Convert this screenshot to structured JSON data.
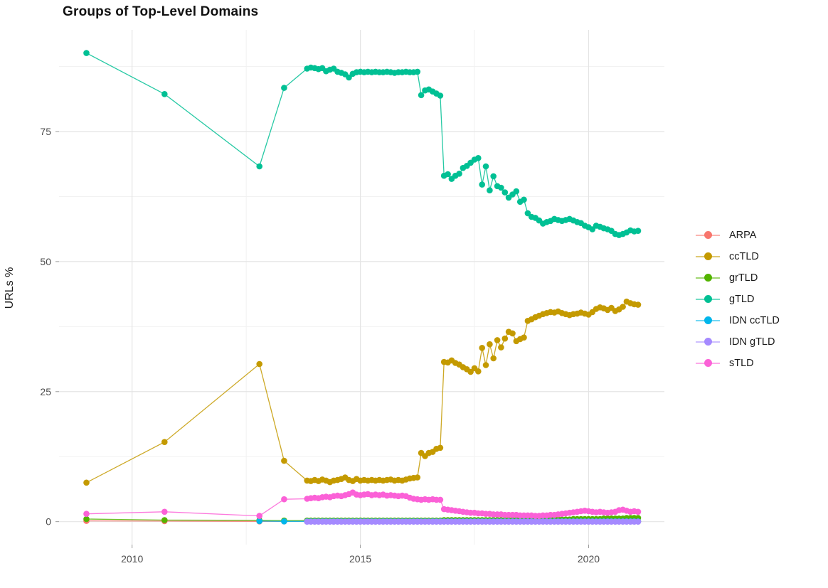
{
  "title": "Groups of Top-Level Domains",
  "chart_data": {
    "type": "line",
    "title": "Groups of Top-Level Domains",
    "xlabel": "",
    "ylabel": "URLs %",
    "x_ticks": [
      2010,
      2015,
      2020
    ],
    "x_minor_gridlines": [
      2012.5,
      2017.5
    ],
    "y_ticks": [
      0,
      25,
      50,
      75
    ],
    "y_minor_gridlines": [
      12.5,
      37.5,
      62.5,
      87.5
    ],
    "xlim": [
      2008.4,
      2021.66
    ],
    "ylim": [
      -4.42,
      94.55
    ],
    "grid": true,
    "legend_position": "right",
    "colors": {
      "major_grid": "#e4e4e4",
      "minor_grid": "#f0f0f0",
      "tick_mark": "#9a9a9a",
      "tick_text": "#4d4d4d",
      "title_text": "#111111"
    },
    "series": [
      {
        "name": "ARPA",
        "color": "#F8766D",
        "early": [
          [
            2009.0,
            0.15
          ],
          [
            2010.71,
            0.1
          ],
          [
            2012.79,
            0.05
          ],
          [
            2013.33,
            0.05
          ]
        ],
        "dense": {
          "x0": 2013.833,
          "dx": 0.08333,
          "fill_value": 0.05,
          "count": 88
        }
      },
      {
        "name": "ccTLD",
        "color": "#C49A00",
        "early": [
          [
            2009.0,
            7.5
          ],
          [
            2010.71,
            15.3
          ],
          [
            2012.79,
            30.3
          ],
          [
            2013.33,
            11.7
          ]
        ],
        "dense": {
          "x0": 2013.833,
          "dx": 0.08333,
          "values": [
            7.9,
            7.8,
            8.0,
            7.8,
            8.1,
            7.9,
            7.6,
            7.9,
            8.0,
            8.2,
            8.5,
            8.0,
            7.8,
            8.2,
            7.9,
            8.0,
            7.9,
            8.0,
            7.9,
            8.0,
            7.9,
            8.0,
            8.1,
            7.9,
            8.0,
            7.9,
            8.1,
            8.3,
            8.4,
            8.5,
            13.2,
            12.6,
            13.2,
            13.4,
            14.0,
            14.2,
            30.7,
            30.6,
            31.0,
            30.5,
            30.2,
            29.7,
            29.3,
            28.8,
            29.5,
            28.9,
            33.4,
            30.1,
            34.1,
            31.4,
            34.9,
            33.5,
            35.2,
            36.5,
            36.2,
            34.7,
            35.1,
            35.4,
            38.6,
            38.9,
            39.3,
            39.6,
            39.9,
            40.1,
            40.3,
            40.2,
            40.4,
            40.1,
            39.9,
            39.7,
            39.9,
            40.0,
            40.2,
            40.0,
            39.8,
            40.3,
            40.9,
            41.2,
            41.0,
            40.7,
            41.1,
            40.5,
            40.8,
            41.3,
            42.3,
            42.0,
            41.8,
            41.7
          ]
        }
      },
      {
        "name": "grTLD",
        "color": "#53B400",
        "early": [
          [
            2009.0,
            0.5
          ],
          [
            2010.71,
            0.3
          ],
          [
            2012.79,
            0.25
          ],
          [
            2013.33,
            0.2
          ]
        ],
        "dense": {
          "x0": 2013.833,
          "dx": 0.08333,
          "values": [
            0.2,
            0.2,
            0.2,
            0.2,
            0.2,
            0.2,
            0.2,
            0.2,
            0.2,
            0.2,
            0.2,
            0.2,
            0.2,
            0.2,
            0.2,
            0.2,
            0.2,
            0.2,
            0.2,
            0.2,
            0.2,
            0.2,
            0.2,
            0.2,
            0.2,
            0.2,
            0.2,
            0.2,
            0.2,
            0.2,
            0.2,
            0.2,
            0.2,
            0.2,
            0.2,
            0.2,
            0.3,
            0.3,
            0.3,
            0.3,
            0.3,
            0.3,
            0.3,
            0.3,
            0.3,
            0.3,
            0.3,
            0.3,
            0.3,
            0.3,
            0.3,
            0.3,
            0.3,
            0.3,
            0.3,
            0.3,
            0.3,
            0.3,
            0.4,
            0.4,
            0.4,
            0.4,
            0.4,
            0.4,
            0.4,
            0.4,
            0.4,
            0.4,
            0.4,
            0.4,
            0.5,
            0.5,
            0.5,
            0.5,
            0.5,
            0.5,
            0.5,
            0.5,
            0.6,
            0.6,
            0.6,
            0.6,
            0.6,
            0.6,
            0.7,
            0.7,
            0.7,
            0.7
          ]
        }
      },
      {
        "name": "gTLD",
        "color": "#00C094",
        "early": [
          [
            2009.0,
            90.1
          ],
          [
            2010.71,
            82.2
          ],
          [
            2012.79,
            68.3
          ],
          [
            2013.33,
            83.4
          ]
        ],
        "dense": {
          "x0": 2013.833,
          "dx": 0.08333,
          "values": [
            87.1,
            87.3,
            87.2,
            87.0,
            87.2,
            86.6,
            86.9,
            87.1,
            86.5,
            86.3,
            86.0,
            85.4,
            86.1,
            86.4,
            86.5,
            86.4,
            86.5,
            86.4,
            86.5,
            86.4,
            86.4,
            86.5,
            86.4,
            86.3,
            86.4,
            86.4,
            86.5,
            86.4,
            86.4,
            86.5,
            82.0,
            82.9,
            83.1,
            82.7,
            82.3,
            81.9,
            66.5,
            66.8,
            65.9,
            66.5,
            66.9,
            68.0,
            68.4,
            69.0,
            69.6,
            69.9,
            64.8,
            68.3,
            63.7,
            66.4,
            64.5,
            64.2,
            63.3,
            62.3,
            62.9,
            63.5,
            61.5,
            61.9,
            59.3,
            58.6,
            58.4,
            57.9,
            57.3,
            57.6,
            57.8,
            58.2,
            58.0,
            57.8,
            58.0,
            58.2,
            57.9,
            57.6,
            57.4,
            56.9,
            56.6,
            56.2,
            56.9,
            56.7,
            56.4,
            56.2,
            55.9,
            55.3,
            55.1,
            55.3,
            55.6,
            56.0,
            55.8,
            55.9
          ]
        }
      },
      {
        "name": "IDN ccTLD",
        "color": "#00B6EB",
        "early": [
          [
            2012.79,
            0.1
          ],
          [
            2013.33,
            0.05
          ]
        ],
        "dense": {
          "x0": 2013.833,
          "dx": 0.08333,
          "fill_value": 0.05,
          "count": 88
        }
      },
      {
        "name": "IDN gTLD",
        "color": "#A58AFF",
        "early": [],
        "dense": {
          "x0": 2013.833,
          "dx": 0.08333,
          "fill_value": 0.0,
          "count": 88
        }
      },
      {
        "name": "sTLD",
        "color": "#FB61D7",
        "early": [
          [
            2009.0,
            1.5
          ],
          [
            2010.71,
            1.9
          ],
          [
            2012.79,
            1.1
          ],
          [
            2013.33,
            4.3
          ]
        ],
        "dense": {
          "x0": 2013.833,
          "dx": 0.08333,
          "values": [
            4.4,
            4.5,
            4.6,
            4.5,
            4.7,
            4.8,
            4.7,
            4.9,
            5.0,
            4.9,
            5.1,
            5.3,
            5.6,
            5.2,
            5.1,
            5.2,
            5.3,
            5.1,
            5.2,
            5.1,
            5.2,
            5.0,
            5.1,
            5.0,
            4.9,
            5.0,
            4.9,
            4.6,
            4.4,
            4.3,
            4.2,
            4.3,
            4.2,
            4.3,
            4.2,
            4.2,
            2.4,
            2.3,
            2.2,
            2.1,
            2.0,
            1.9,
            1.8,
            1.7,
            1.7,
            1.6,
            1.6,
            1.5,
            1.5,
            1.4,
            1.4,
            1.4,
            1.3,
            1.3,
            1.3,
            1.3,
            1.2,
            1.2,
            1.2,
            1.2,
            1.1,
            1.1,
            1.2,
            1.2,
            1.3,
            1.3,
            1.4,
            1.5,
            1.6,
            1.7,
            1.8,
            1.9,
            2.0,
            2.1,
            2.0,
            1.9,
            1.8,
            1.9,
            1.8,
            1.7,
            1.8,
            1.9,
            2.2,
            2.3,
            2.1,
            1.9,
            2.0,
            1.9
          ]
        }
      }
    ],
    "legend": {
      "entries": [
        "ARPA",
        "ccTLD",
        "grTLD",
        "gTLD",
        "IDN ccTLD",
        "IDN gTLD",
        "sTLD"
      ]
    }
  }
}
